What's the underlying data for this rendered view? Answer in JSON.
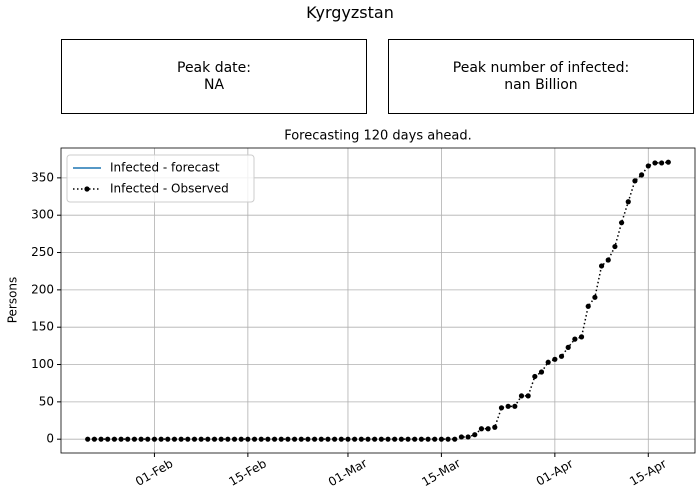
{
  "title": "Kyrgyzstan",
  "panels": [
    {
      "label": "Peak date:",
      "value": "NA"
    },
    {
      "label": "Peak number of infected:",
      "value": "nan Billion"
    }
  ],
  "chart_data": {
    "type": "line",
    "title": "Forecasting 120 days ahead.",
    "ylabel": "Persons",
    "x": [
      "22-Jan",
      "23-Jan",
      "24-Jan",
      "25-Jan",
      "26-Jan",
      "27-Jan",
      "28-Jan",
      "29-Jan",
      "30-Jan",
      "31-Jan",
      "01-Feb",
      "02-Feb",
      "03-Feb",
      "04-Feb",
      "05-Feb",
      "06-Feb",
      "07-Feb",
      "08-Feb",
      "09-Feb",
      "10-Feb",
      "11-Feb",
      "12-Feb",
      "13-Feb",
      "14-Feb",
      "15-Feb",
      "16-Feb",
      "17-Feb",
      "18-Feb",
      "19-Feb",
      "20-Feb",
      "21-Feb",
      "22-Feb",
      "23-Feb",
      "24-Feb",
      "25-Feb",
      "26-Feb",
      "27-Feb",
      "28-Feb",
      "29-Feb",
      "01-Mar",
      "02-Mar",
      "03-Mar",
      "04-Mar",
      "05-Mar",
      "06-Mar",
      "07-Mar",
      "08-Mar",
      "09-Mar",
      "10-Mar",
      "11-Mar",
      "12-Mar",
      "13-Mar",
      "14-Mar",
      "15-Mar",
      "16-Mar",
      "17-Mar",
      "18-Mar",
      "19-Mar",
      "20-Mar",
      "21-Mar",
      "22-Mar",
      "23-Mar",
      "24-Mar",
      "25-Mar",
      "26-Mar",
      "27-Mar",
      "28-Mar",
      "29-Mar",
      "30-Mar",
      "31-Mar",
      "01-Apr",
      "02-Apr",
      "03-Apr",
      "04-Apr",
      "05-Apr",
      "06-Apr",
      "07-Apr",
      "08-Apr",
      "09-Apr",
      "10-Apr",
      "11-Apr",
      "12-Apr",
      "13-Apr",
      "14-Apr",
      "15-Apr",
      "16-Apr",
      "17-Apr",
      "18-Apr"
    ],
    "series": [
      {
        "name": "Infected - forecast",
        "color": "#1f77b4",
        "linestyle": "solid",
        "marker": "none",
        "values": [
          null,
          null,
          null,
          null,
          null,
          null,
          null,
          null,
          null,
          null,
          null,
          null,
          null,
          null,
          null,
          null,
          null,
          null,
          null,
          null,
          null,
          null,
          null,
          null,
          null,
          null,
          null,
          null,
          null,
          null,
          null,
          null,
          null,
          null,
          null,
          null,
          null,
          null,
          null,
          null,
          null,
          null,
          null,
          null,
          null,
          null,
          null,
          null,
          null,
          null,
          null,
          null,
          null,
          null,
          null,
          null,
          null,
          null,
          null,
          null,
          null,
          null,
          null,
          null,
          null,
          null,
          null,
          null,
          null,
          null,
          null,
          null,
          null,
          null,
          null,
          null,
          null,
          null,
          null,
          null,
          null,
          null,
          null,
          null,
          null,
          null,
          null,
          null
        ]
      },
      {
        "name": "Infected - Observed",
        "color": "#000000",
        "linestyle": "dotted",
        "marker": "circle",
        "values": [
          0,
          0,
          0,
          0,
          0,
          0,
          0,
          0,
          0,
          0,
          0,
          0,
          0,
          0,
          0,
          0,
          0,
          0,
          0,
          0,
          0,
          0,
          0,
          0,
          0,
          0,
          0,
          0,
          0,
          0,
          0,
          0,
          0,
          0,
          0,
          0,
          0,
          0,
          0,
          0,
          0,
          0,
          0,
          0,
          0,
          0,
          0,
          0,
          0,
          0,
          0,
          0,
          0,
          0,
          0,
          0,
          3,
          3,
          6,
          14,
          14,
          16,
          42,
          44,
          44,
          58,
          58,
          84,
          90,
          103,
          107,
          111,
          123,
          134,
          137,
          178,
          190,
          232,
          240,
          258,
          290,
          318,
          346,
          354,
          366,
          370,
          370,
          371
        ]
      }
    ],
    "xlim": [
      "18-Jan",
      "22-Apr"
    ],
    "xticks": [
      "01-Feb",
      "15-Feb",
      "01-Mar",
      "15-Mar",
      "01-Apr",
      "15-Apr"
    ],
    "ylim": [
      -18.5,
      390
    ],
    "yticks": [
      0,
      50,
      100,
      150,
      200,
      250,
      300,
      350
    ],
    "grid": true,
    "legend": "upper left"
  }
}
